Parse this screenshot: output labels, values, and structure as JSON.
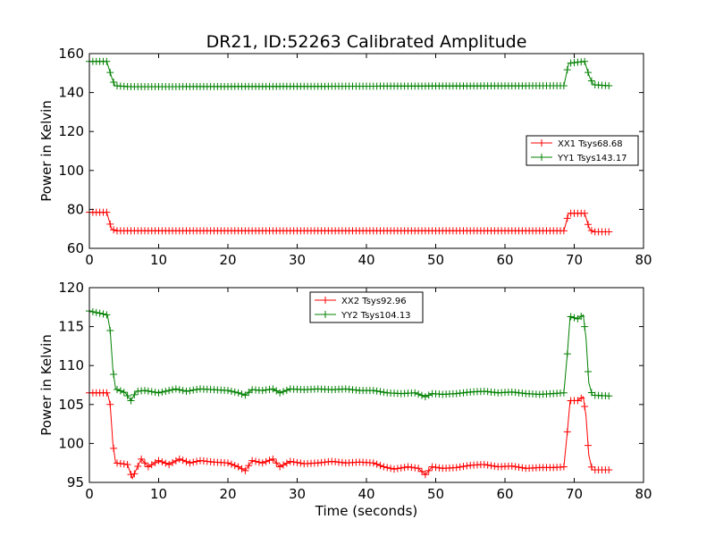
{
  "chart_data": [
    {
      "type": "line",
      "title": "DR21, ID:52263 Calibrated Amplitude",
      "xlabel": "",
      "ylabel": "Power in Kelvin",
      "xlim": [
        0,
        80
      ],
      "ylim": [
        60,
        160
      ],
      "xticks": [
        0,
        10,
        20,
        30,
        40,
        50,
        60,
        70,
        80
      ],
      "yticks": [
        60,
        80,
        100,
        120,
        140,
        160
      ],
      "grid": false,
      "legend_position": "center-right",
      "marker": "+",
      "series": [
        {
          "name": "XX1 Tsys68.68",
          "color": "#ff0000",
          "points": [
            [
              0,
              78.5
            ],
            [
              2.5,
              78.5
            ],
            [
              3.2,
              70
            ],
            [
              3.8,
              69
            ],
            [
              68.5,
              69
            ],
            [
              69.2,
              78
            ],
            [
              71.5,
              78
            ],
            [
              72.2,
              70
            ],
            [
              72.7,
              68.5
            ],
            [
              75,
              68.5
            ]
          ]
        },
        {
          "name": "YY1 Tsys143.17",
          "color": "#008000",
          "points": [
            [
              0,
              156
            ],
            [
              2.5,
              156
            ],
            [
              3.2,
              148
            ],
            [
              3.7,
              143.5
            ],
            [
              6,
              143
            ],
            [
              68.5,
              143.5
            ],
            [
              69.2,
              155
            ],
            [
              71.5,
              156
            ],
            [
              72.2,
              148
            ],
            [
              72.8,
              144
            ],
            [
              75,
              143.5
            ]
          ]
        }
      ]
    },
    {
      "type": "line",
      "title": "",
      "xlabel": "Time (seconds)",
      "ylabel": "Power in Kelvin",
      "xlim": [
        0,
        80
      ],
      "ylim": [
        95,
        120
      ],
      "xticks": [
        0,
        10,
        20,
        30,
        40,
        50,
        60,
        70,
        80
      ],
      "yticks": [
        95,
        100,
        105,
        110,
        115,
        120
      ],
      "grid": false,
      "legend_position": "upper-center",
      "marker": "+",
      "series": [
        {
          "name": "XX2 Tsys92.96",
          "color": "#ff0000",
          "points": [
            [
              0,
              106.5
            ],
            [
              2.6,
              106.5
            ],
            [
              3.0,
              105
            ],
            [
              3.4,
              100
            ],
            [
              3.8,
              97.5
            ],
            [
              5.5,
              97.3
            ],
            [
              6.2,
              95.5
            ],
            [
              6.7,
              96.5
            ],
            [
              7.5,
              98
            ],
            [
              8.5,
              97
            ],
            [
              10,
              97.8
            ],
            [
              11.5,
              97.3
            ],
            [
              13,
              98
            ],
            [
              14.5,
              97.5
            ],
            [
              16,
              97.8
            ],
            [
              18,
              97.6
            ],
            [
              20,
              97.5
            ],
            [
              21.5,
              97
            ],
            [
              22.5,
              96.5
            ],
            [
              23.5,
              97.8
            ],
            [
              25,
              97.5
            ],
            [
              26.5,
              98
            ],
            [
              27.5,
              97
            ],
            [
              29,
              97.7
            ],
            [
              31,
              97.4
            ],
            [
              33,
              97.5
            ],
            [
              35,
              97.7
            ],
            [
              37,
              97.5
            ],
            [
              39,
              97.6
            ],
            [
              41,
              97.5
            ],
            [
              42.5,
              97
            ],
            [
              44,
              96.7
            ],
            [
              46,
              97
            ],
            [
              47.5,
              96.8
            ],
            [
              48.5,
              96
            ],
            [
              49.5,
              97
            ],
            [
              51,
              96.8
            ],
            [
              53,
              96.9
            ],
            [
              55,
              97.2
            ],
            [
              57,
              97.3
            ],
            [
              59,
              97
            ],
            [
              61,
              97.1
            ],
            [
              63,
              96.8
            ],
            [
              65,
              96.9
            ],
            [
              67,
              96.9
            ],
            [
              68.5,
              97
            ],
            [
              69,
              101.5
            ],
            [
              69.4,
              105.5
            ],
            [
              70.5,
              105.5
            ],
            [
              71.3,
              106
            ],
            [
              71.7,
              103.5
            ],
            [
              72.1,
              98.5
            ],
            [
              72.6,
              96.6
            ],
            [
              75,
              96.6
            ]
          ]
        },
        {
          "name": "YY2 Tsys104.13",
          "color": "#008000",
          "points": [
            [
              0,
              117
            ],
            [
              2.6,
              116.5
            ],
            [
              3.0,
              114.5
            ],
            [
              3.4,
              109.5
            ],
            [
              3.8,
              107
            ],
            [
              5.2,
              106.5
            ],
            [
              6.0,
              105.5
            ],
            [
              6.8,
              106.7
            ],
            [
              8,
              106.8
            ],
            [
              10,
              106.5
            ],
            [
              12.5,
              107
            ],
            [
              14,
              106.7
            ],
            [
              16,
              107
            ],
            [
              18,
              106.9
            ],
            [
              20,
              106.8
            ],
            [
              21.5,
              106.5
            ],
            [
              22.5,
              106.2
            ],
            [
              23.5,
              106.9
            ],
            [
              25,
              106.8
            ],
            [
              26.5,
              107
            ],
            [
              27.5,
              106.5
            ],
            [
              29,
              107
            ],
            [
              31,
              106.9
            ],
            [
              33,
              107
            ],
            [
              35,
              106.9
            ],
            [
              37,
              107
            ],
            [
              39,
              106.8
            ],
            [
              41,
              106.8
            ],
            [
              43,
              106.5
            ],
            [
              45,
              106.4
            ],
            [
              47,
              106.5
            ],
            [
              48.5,
              106
            ],
            [
              49.5,
              106.4
            ],
            [
              51,
              106.3
            ],
            [
              53,
              106.4
            ],
            [
              55,
              106.6
            ],
            [
              57,
              106.7
            ],
            [
              59,
              106.5
            ],
            [
              61,
              106.6
            ],
            [
              63,
              106.4
            ],
            [
              65,
              106.3
            ],
            [
              67,
              106.4
            ],
            [
              68.5,
              106.5
            ],
            [
              69,
              111.5
            ],
            [
              69.4,
              116.3
            ],
            [
              70.5,
              116
            ],
            [
              71.3,
              116.5
            ],
            [
              71.7,
              113.5
            ],
            [
              72.1,
              107.8
            ],
            [
              72.6,
              106.2
            ],
            [
              75,
              106.1
            ]
          ]
        }
      ]
    }
  ]
}
